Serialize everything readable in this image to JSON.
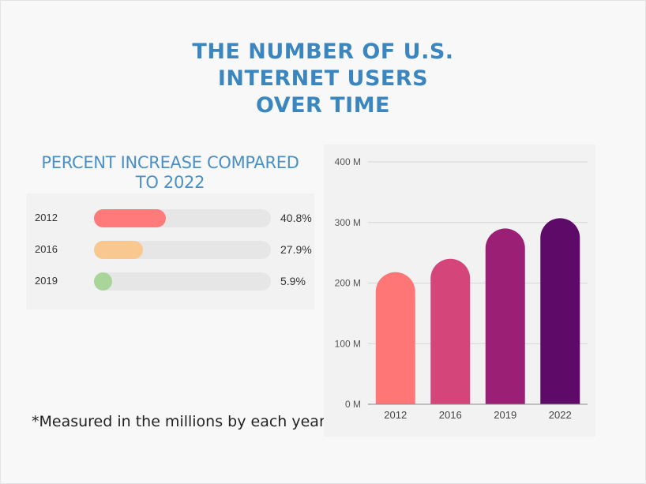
{
  "title": {
    "line1": "THE NUMBER OF U.S.",
    "line2": "INTERNET USERS",
    "line3": "OVER TIME"
  },
  "percent_panel": {
    "title_line1": "PERCENT INCREASE COMPARED",
    "title_line2": "TO 2022",
    "rows": [
      {
        "year": "2012",
        "label": "40.8%",
        "value": 40.8,
        "color": "#ff7a7a"
      },
      {
        "year": "2016",
        "label": "27.9%",
        "value": 27.9,
        "color": "#f9c890"
      },
      {
        "year": "2019",
        "label": "5.9%",
        "value": 5.9,
        "color": "#a9d59a"
      }
    ]
  },
  "note": "*Measured in the millions by each year*",
  "chart_data": {
    "type": "bar",
    "categories": [
      "2012",
      "2016",
      "2019",
      "2022"
    ],
    "values": [
      218,
      240,
      290,
      307
    ],
    "colors": [
      "#ff7676",
      "#d4457a",
      "#9c1f76",
      "#5e0a68"
    ],
    "yticks": [
      "0 M",
      "100 M",
      "200 M",
      "300 M",
      "400 M"
    ],
    "ylim": [
      0,
      400
    ],
    "grid": true,
    "xlabel": "",
    "ylabel": ""
  }
}
